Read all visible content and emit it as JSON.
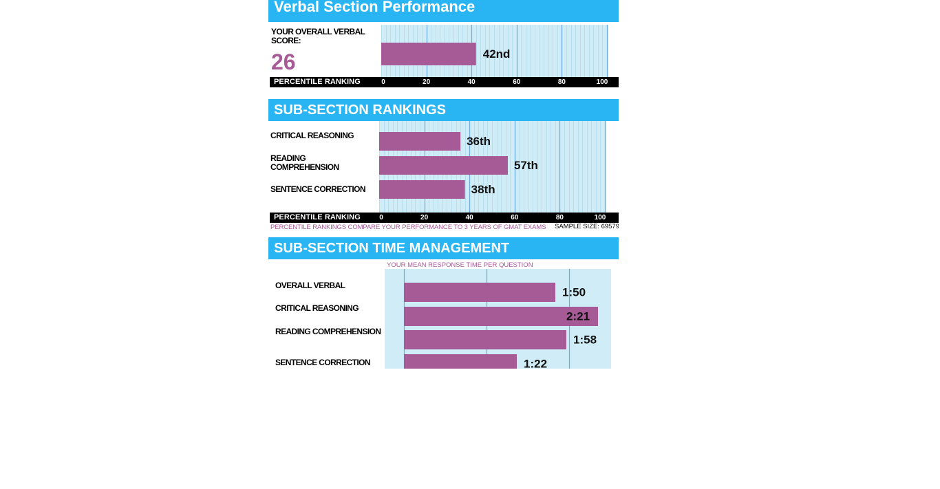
{
  "report": {
    "title": "Verbal Section Performance",
    "overall_label": "YOUR OVERALL VERBAL SCORE:",
    "overall_score": "26",
    "ranking_header": "SUB-SECTION RANKINGS",
    "ranking_note": "PERCENTILE RANKINGS COMPARE YOUR PERFORMANCE TO 3 YEARS OF GMAT EXAMS",
    "sample_size": "SAMPLE SIZE: 69579",
    "time_header": "SUB-SECTION TIME MANAGEMENT",
    "time_subtitle": "YOUR MEAN RESPONSE TIME PER QUESTION"
  },
  "colors": {
    "header_bg": "#29b5f4",
    "bar": "#a65a96",
    "plot_bg": "#cfecf7",
    "gridline_major": "#6fa8e6",
    "gridline_minor": "#b7dff0",
    "axis_bg": "#000000",
    "score": "#a65a96"
  },
  "chart_data": [
    {
      "type": "bar",
      "orientation": "horizontal",
      "categories": [
        ""
      ],
      "values": [
        42
      ],
      "data_labels": [
        "42nd"
      ],
      "xlabel": "PERCENTILE RANKING",
      "xticks": [
        "0",
        "20",
        "40",
        "60",
        "80",
        "100"
      ],
      "xlim": [
        0,
        100
      ],
      "grid": true
    },
    {
      "type": "bar",
      "orientation": "horizontal",
      "categories": [
        "CRITICAL REASONING",
        "READING COMPREHENSION",
        "SENTENCE CORRECTION"
      ],
      "values": [
        36,
        57,
        38
      ],
      "data_labels": [
        "36th",
        "57th",
        "38th"
      ],
      "xlabel": "PERCENTILE RANKING",
      "xticks": [
        "0",
        "20",
        "40",
        "60",
        "80",
        "100"
      ],
      "xlim": [
        0,
        100
      ],
      "grid": true
    },
    {
      "type": "bar",
      "orientation": "horizontal",
      "title": "YOUR MEAN RESPONSE TIME PER QUESTION",
      "categories": [
        "OVERALL VERBAL",
        "CRITICAL REASONING",
        "READING COMPREHENSION",
        "SENTENCE CORRECTION"
      ],
      "values": [
        110,
        141,
        118,
        82
      ],
      "data_labels": [
        "1:50",
        "2:21",
        "1:58",
        "1:22"
      ],
      "unit": "seconds",
      "xlim": [
        0,
        150
      ],
      "grid": true
    }
  ]
}
